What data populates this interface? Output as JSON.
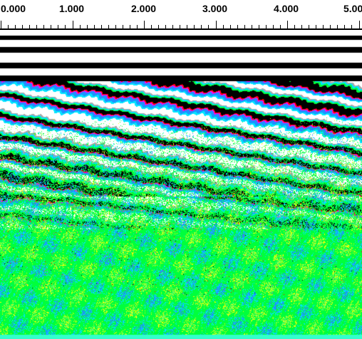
{
  "ruler": {
    "labels": [
      "0.000",
      "1.000",
      "2.000",
      "3.000",
      "4.000",
      "5.00"
    ],
    "range": [
      0,
      5
    ],
    "minor_ticks_per_major": 10
  },
  "radargram": {
    "palette": [
      "#000000",
      "#ffffff",
      "#00ff3c",
      "#00e5ff",
      "#1e90ff",
      "#0000ff",
      "#ff00ff",
      "#ff0000",
      "#ffaa00",
      "#ffff00",
      "#8a2be2",
      "#a9a9a9"
    ]
  }
}
